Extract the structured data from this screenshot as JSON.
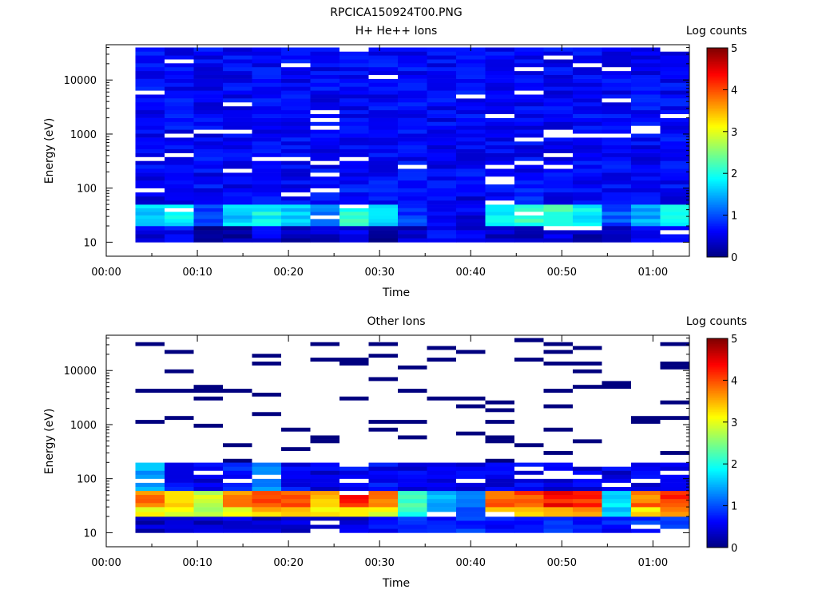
{
  "figure_title": "RPCICA150924T00.PNG",
  "chart_data": [
    {
      "type": "heatmap",
      "title": "H+ He++ Ions",
      "xlabel": "Time",
      "ylabel": "Energy (eV)",
      "colorbar_label": "Log counts",
      "xticks": [
        "00:00",
        "00:10",
        "00:20",
        "00:30",
        "00:40",
        "00:50",
        "01:00"
      ],
      "yticks": [
        "10",
        "100",
        "1000",
        "10000"
      ],
      "cbar_ticks": [
        "0",
        "1",
        "2",
        "3",
        "4",
        "5"
      ],
      "x_range_min": [
        0,
        64
      ],
      "y_range": [
        5.5,
        45000
      ],
      "y_scale": "log",
      "z_range": [
        0,
        5
      ],
      "time_bins_min": [
        3.2,
        6.4,
        9.6,
        12.8,
        16.0,
        19.2,
        22.4,
        25.6,
        28.8,
        32.0,
        35.2,
        38.4,
        41.6,
        44.8,
        48.0,
        51.2,
        54.4,
        57.6,
        60.8
      ],
      "energy_bands_ev": [
        {
          "band": "10-20",
          "log_counts": [
            0.4,
            0.6,
            0.0,
            0.2,
            0.5,
            0.3,
            0.3,
            0.5,
            0.2,
            0.3,
            0.6,
            0.5,
            0.4,
            0.3,
            0.4,
            0.3,
            0.4,
            0.5,
            0.6
          ]
        },
        {
          "band": "20-50",
          "log_counts": [
            1.6,
            1.8,
            0.9,
            1.6,
            1.9,
            1.6,
            1.2,
            2.0,
            1.7,
            0.9,
            0.6,
            0.5,
            1.8,
            2.1,
            2.2,
            1.8,
            1.0,
            1.4,
            1.9
          ]
        },
        {
          "band": "50-100",
          "log_counts": [
            0.5,
            0.6,
            0.5,
            0.7,
            0.6,
            0.6,
            0.6,
            0.7,
            0.6,
            0.6,
            0.6,
            0.5,
            0.6,
            0.7,
            0.6,
            0.6,
            0.6,
            0.6,
            0.6
          ]
        },
        {
          "band": "100-40000",
          "log_counts": [
            0.6,
            0.6,
            0.6,
            0.6,
            0.6,
            0.6,
            0.6,
            0.6,
            0.6,
            0.6,
            0.6,
            0.6,
            0.6,
            0.6,
            0.6,
            0.6,
            0.6,
            0.6,
            0.6
          ]
        }
      ]
    },
    {
      "type": "heatmap",
      "title": "Other Ions",
      "xlabel": "Time",
      "ylabel": "Energy (eV)",
      "colorbar_label": "Log counts",
      "xticks": [
        "00:00",
        "00:10",
        "00:20",
        "00:30",
        "00:40",
        "00:50",
        "01:00"
      ],
      "yticks": [
        "10",
        "100",
        "1000",
        "10000"
      ],
      "cbar_ticks": [
        "0",
        "1",
        "2",
        "3",
        "4",
        "5"
      ],
      "x_range_min": [
        0,
        64
      ],
      "y_range": [
        5.5,
        45000
      ],
      "y_scale": "log",
      "z_range": [
        0,
        5
      ],
      "time_bins_min": [
        3.2,
        6.4,
        9.6,
        12.8,
        16.0,
        19.2,
        22.4,
        25.6,
        28.8,
        32.0,
        35.2,
        38.4,
        41.6,
        44.8,
        48.0,
        51.2,
        54.4,
        57.6,
        60.8
      ],
      "energy_bands_ev": [
        {
          "band": "10-20",
          "log_counts": [
            0.3,
            0.4,
            0.4,
            0.4,
            0.4,
            0.4,
            0.3,
            0.4,
            0.6,
            0.8,
            0.8,
            0.8,
            0.7,
            0.7,
            0.8,
            0.7,
            0.7,
            0.8,
            0.8
          ]
        },
        {
          "band": "20-30",
          "log_counts": [
            3.0,
            3.1,
            2.6,
            3.0,
            3.4,
            3.4,
            3.2,
            3.4,
            3.0,
            2.0,
            1.2,
            1.0,
            3.4,
            3.5,
            3.7,
            3.5,
            1.6,
            3.3,
            3.6
          ]
        },
        {
          "band": "30-60",
          "log_counts": [
            3.8,
            3.4,
            2.8,
            3.6,
            4.0,
            3.9,
            3.5,
            4.2,
            3.7,
            2.3,
            1.4,
            1.3,
            3.8,
            4.0,
            4.3,
            4.1,
            1.8,
            3.8,
            4.1
          ]
        },
        {
          "band": "60-200",
          "log_counts": [
            1.4,
            0.7,
            0.5,
            0.7,
            1.3,
            0.6,
            0.5,
            0.6,
            0.6,
            0.5,
            0.5,
            0.5,
            0.5,
            0.6,
            0.5,
            0.5,
            0.5,
            0.5,
            0.6
          ]
        },
        {
          "band": "200-40000",
          "log_counts": [
            0.1,
            0.1,
            0.1,
            0.1,
            0.1,
            0.1,
            0.1,
            0.1,
            0.1,
            0.1,
            0.1,
            0.1,
            0.1,
            0.1,
            0.1,
            0.1,
            0.1,
            0.1,
            0.1
          ]
        }
      ]
    }
  ],
  "colors": {
    "colormap": [
      "#00007f",
      "#0000ff",
      "#007fff",
      "#00ffff",
      "#7fff7f",
      "#ffff00",
      "#ff7f00",
      "#ff0000",
      "#7f0000"
    ],
    "empty_bin": "#ffffff",
    "axis": "#000000"
  }
}
